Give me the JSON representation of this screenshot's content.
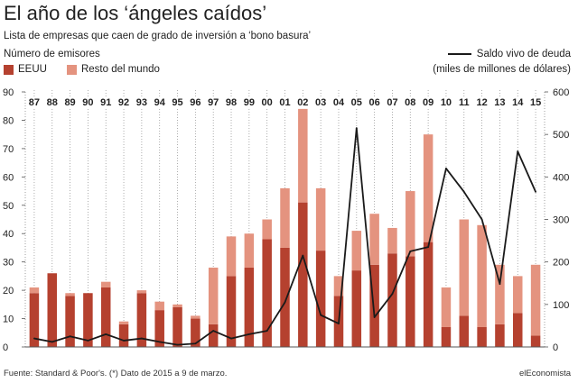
{
  "header": {
    "title": "El año de los ‘ángeles caídos’",
    "subtitle": "Lista de empresas que caen de grado de inversión a ‘bono basura’",
    "left_axis_caption": "Número de emisores",
    "right_axis_caption_1": "Saldo vivo de deuda",
    "right_axis_caption_2": "(miles de millones de dólares)"
  },
  "legend": {
    "series_1": "EEUU",
    "series_2": "Resto del mundo",
    "color_1": "#b5412f",
    "color_2": "#e4937f",
    "line_color": "#1a1a1a"
  },
  "footer": {
    "source": "Fuente: Standard & Poor's. (*) Dato de 2015 a 9 de marzo.",
    "brand": "elEconomista"
  },
  "chart_data": {
    "type": "bar",
    "stacked": true,
    "categories": [
      "87",
      "88",
      "89",
      "90",
      "91",
      "92",
      "93",
      "94",
      "95",
      "96",
      "97",
      "98",
      "99",
      "00",
      "01",
      "02",
      "03",
      "04",
      "05",
      "06",
      "07",
      "08",
      "09",
      "10",
      "11",
      "12",
      "13",
      "14",
      "15"
    ],
    "series": [
      {
        "name": "EEUU",
        "axis": "left",
        "values": [
          19,
          26,
          18,
          19,
          21,
          8,
          19,
          13,
          14,
          10,
          8,
          25,
          28,
          38,
          35,
          51,
          34,
          18,
          27,
          29,
          33,
          32,
          37,
          7,
          11,
          7,
          8,
          12,
          4
        ]
      },
      {
        "name": "Resto del mundo",
        "axis": "left",
        "values": [
          2,
          0,
          1,
          0,
          2,
          1,
          1,
          3,
          1,
          1,
          20,
          14,
          12,
          7,
          21,
          33,
          22,
          7,
          14,
          18,
          9,
          23,
          38,
          14,
          34,
          36,
          21,
          13,
          25
        ]
      },
      {
        "name": "Saldo vivo de deuda",
        "type": "line",
        "axis": "right",
        "values": [
          20,
          12,
          25,
          15,
          30,
          15,
          20,
          12,
          5,
          8,
          38,
          20,
          30,
          38,
          105,
          215,
          75,
          55,
          515,
          70,
          125,
          225,
          235,
          420,
          365,
          300,
          148,
          460,
          365
        ]
      }
    ],
    "ylim_left": [
      0,
      90
    ],
    "yticks_left": [
      0,
      10,
      20,
      30,
      40,
      50,
      60,
      70,
      80,
      90
    ],
    "ylim_right": [
      0,
      600
    ],
    "yticks_right": [
      0,
      100,
      200,
      300,
      400,
      500,
      600
    ],
    "grid": "vertical-dotted"
  }
}
